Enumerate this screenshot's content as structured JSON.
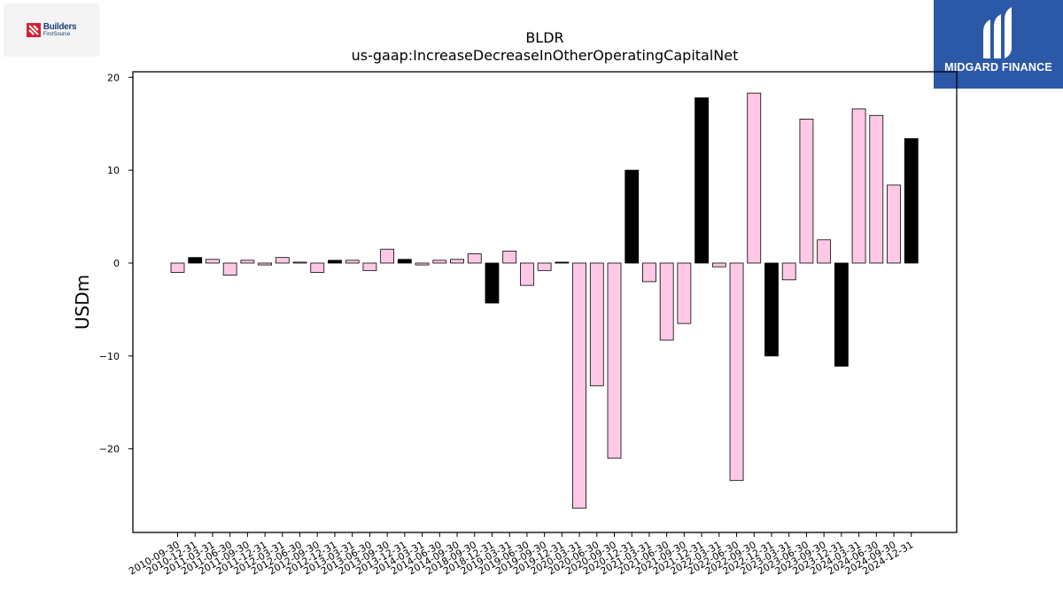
{
  "logos": {
    "left": {
      "line1": "Builders",
      "line2": "FirstSource",
      "icon": "builders-firstsource-logo-icon"
    },
    "right": {
      "name": "MIDGARD FINANCE",
      "icon": "midgard-finance-logo-icon"
    }
  },
  "chart_data": {
    "type": "bar",
    "title": "BLDR",
    "subtitle": "us-gaap:IncreaseDecreaseInOtherOperatingCapitalNet",
    "xlabel": "",
    "ylabel": "USDm",
    "ylim": [
      -29,
      20.6
    ],
    "yticks": [
      20,
      10,
      0,
      -10,
      -20
    ],
    "ytick_labels": [
      "20",
      "10",
      "0",
      "−10",
      "−20"
    ],
    "grid": false,
    "legend": "none",
    "colors": {
      "default": "#ffc8e6",
      "q4": "#000000",
      "edge": "#000000"
    },
    "categories": [
      "2010-09-30",
      "2010-12-31",
      "2011-03-31",
      "2011-06-30",
      "2011-09-30",
      "2011-12-31",
      "2012-03-31",
      "2012-06-30",
      "2012-09-30",
      "2012-12-31",
      "2013-03-31",
      "2013-06-30",
      "2013-09-30",
      "2013-12-31",
      "2014-03-31",
      "2014-06-30",
      "2014-09-30",
      "2018-09-30",
      "2018-12-31",
      "2019-03-31",
      "2019-06-30",
      "2019-09-30",
      "2019-12-31",
      "2020-03-31",
      "2020-06-30",
      "2020-09-30",
      "2020-12-31",
      "2021-03-31",
      "2021-06-30",
      "2021-09-30",
      "2021-12-31",
      "2022-03-31",
      "2022-06-30",
      "2022-09-30",
      "2022-12-31",
      "2023-03-31",
      "2023-06-30",
      "2023-09-30",
      "2023-12-31",
      "2024-03-31",
      "2024-06-30",
      "2024-09-30",
      "2024-12-31"
    ],
    "values": [
      -1.0,
      0.6,
      0.4,
      -1.3,
      0.3,
      -0.2,
      0.6,
      0.1,
      -1.0,
      0.3,
      0.3,
      -0.8,
      1.5,
      0.4,
      -0.2,
      0.3,
      0.4,
      1.0,
      -4.3,
      1.3,
      -2.4,
      -0.8,
      0.1,
      -26.4,
      -13.2,
      -21.0,
      10.0,
      -2.0,
      -8.3,
      -6.5,
      17.8,
      -0.4,
      -23.4,
      18.3,
      -10.0,
      -1.8,
      15.5,
      2.5,
      -11.1,
      16.6,
      15.9,
      8.4,
      13.4
    ],
    "highlight": [
      false,
      true,
      false,
      false,
      false,
      false,
      false,
      false,
      false,
      true,
      false,
      false,
      false,
      true,
      false,
      false,
      false,
      false,
      true,
      false,
      false,
      false,
      true,
      false,
      false,
      false,
      true,
      false,
      false,
      false,
      true,
      false,
      false,
      false,
      true,
      false,
      false,
      false,
      true,
      false,
      false,
      false,
      true
    ]
  }
}
